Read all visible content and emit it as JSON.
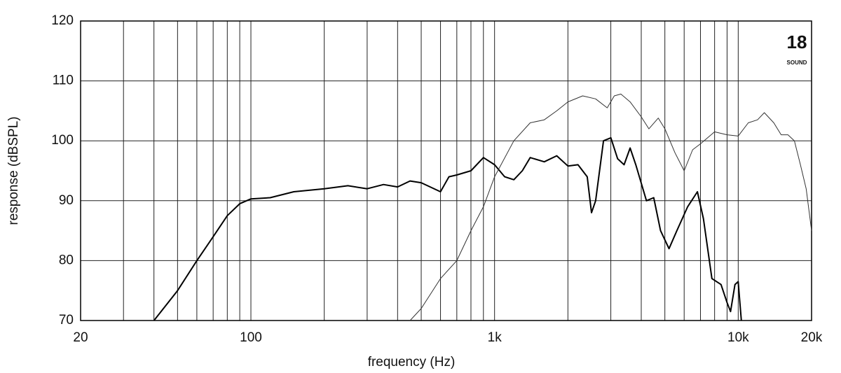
{
  "chart_data": {
    "type": "line",
    "x_label": "frequency (Hz)",
    "y_label": "response (dBSPL)",
    "logo": "18",
    "logo_sub": "SOUND",
    "xscale": "log",
    "xlim": [
      20,
      20000
    ],
    "ylim": [
      70,
      120
    ],
    "xticks": [
      20,
      100,
      {
        "value": 1000,
        "label": "1k"
      },
      {
        "value": 10000,
        "label": "10k"
      },
      {
        "value": 20000,
        "label": "20k"
      }
    ],
    "xminor": [
      30,
      40,
      50,
      60,
      70,
      80,
      90,
      200,
      300,
      400,
      500,
      600,
      700,
      800,
      900,
      2000,
      3000,
      4000,
      5000,
      6000,
      7000,
      8000,
      9000
    ],
    "yticks": [
      70,
      80,
      90,
      100,
      110,
      120
    ],
    "grid": true,
    "series": [
      {
        "color": "#000000",
        "width": 2,
        "x": [
          40,
          50,
          60,
          70,
          80,
          90,
          100,
          120,
          150,
          200,
          250,
          300,
          350,
          400,
          450,
          500,
          600,
          650,
          700,
          800,
          900,
          1000,
          1100,
          1200,
          1300,
          1400,
          1600,
          1800,
          2000,
          2200,
          2400,
          2500,
          2600,
          2800,
          3000,
          3200,
          3400,
          3600,
          3800,
          4200,
          4500,
          4800,
          5200,
          5600,
          6200,
          6800,
          7200,
          7800,
          8500,
          9000,
          9300,
          9700,
          10000,
          10300
        ],
        "values": [
          70,
          75,
          80,
          84,
          87.5,
          89.5,
          90.3,
          90.5,
          91.5,
          92,
          92.5,
          92,
          92.7,
          92.3,
          93.3,
          93,
          91.5,
          94,
          94.3,
          95,
          97.2,
          96,
          94,
          93.5,
          95,
          97.2,
          96.5,
          97.5,
          95.8,
          96,
          94,
          88,
          90,
          100,
          100.5,
          97,
          96,
          98.8,
          96,
          90,
          90.5,
          85,
          82,
          85,
          89,
          91.5,
          87,
          77,
          76,
          73,
          71.5,
          76,
          76.5,
          70
        ]
      },
      {
        "color": "#333333",
        "width": 1,
        "x": [
          450,
          500,
          600,
          700,
          800,
          900,
          1000,
          1200,
          1400,
          1600,
          1800,
          2000,
          2300,
          2600,
          2900,
          3100,
          3300,
          3600,
          4000,
          4300,
          4700,
          5000,
          5500,
          6000,
          6500,
          7000,
          8000,
          9000,
          10000,
          11000,
          12000,
          12800,
          14000,
          15000,
          16000,
          17000,
          18000,
          19000,
          20000
        ],
        "values": [
          70,
          72,
          77,
          80,
          85,
          89,
          94,
          100,
          103,
          103.5,
          105,
          106.5,
          107.5,
          107,
          105.5,
          107.5,
          107.8,
          106.5,
          104,
          102,
          103.8,
          102,
          98,
          95,
          98.5,
          99.5,
          101.5,
          101,
          100.8,
          103,
          103.5,
          104.7,
          103,
          101,
          101,
          100,
          96,
          92,
          85
        ]
      }
    ]
  }
}
